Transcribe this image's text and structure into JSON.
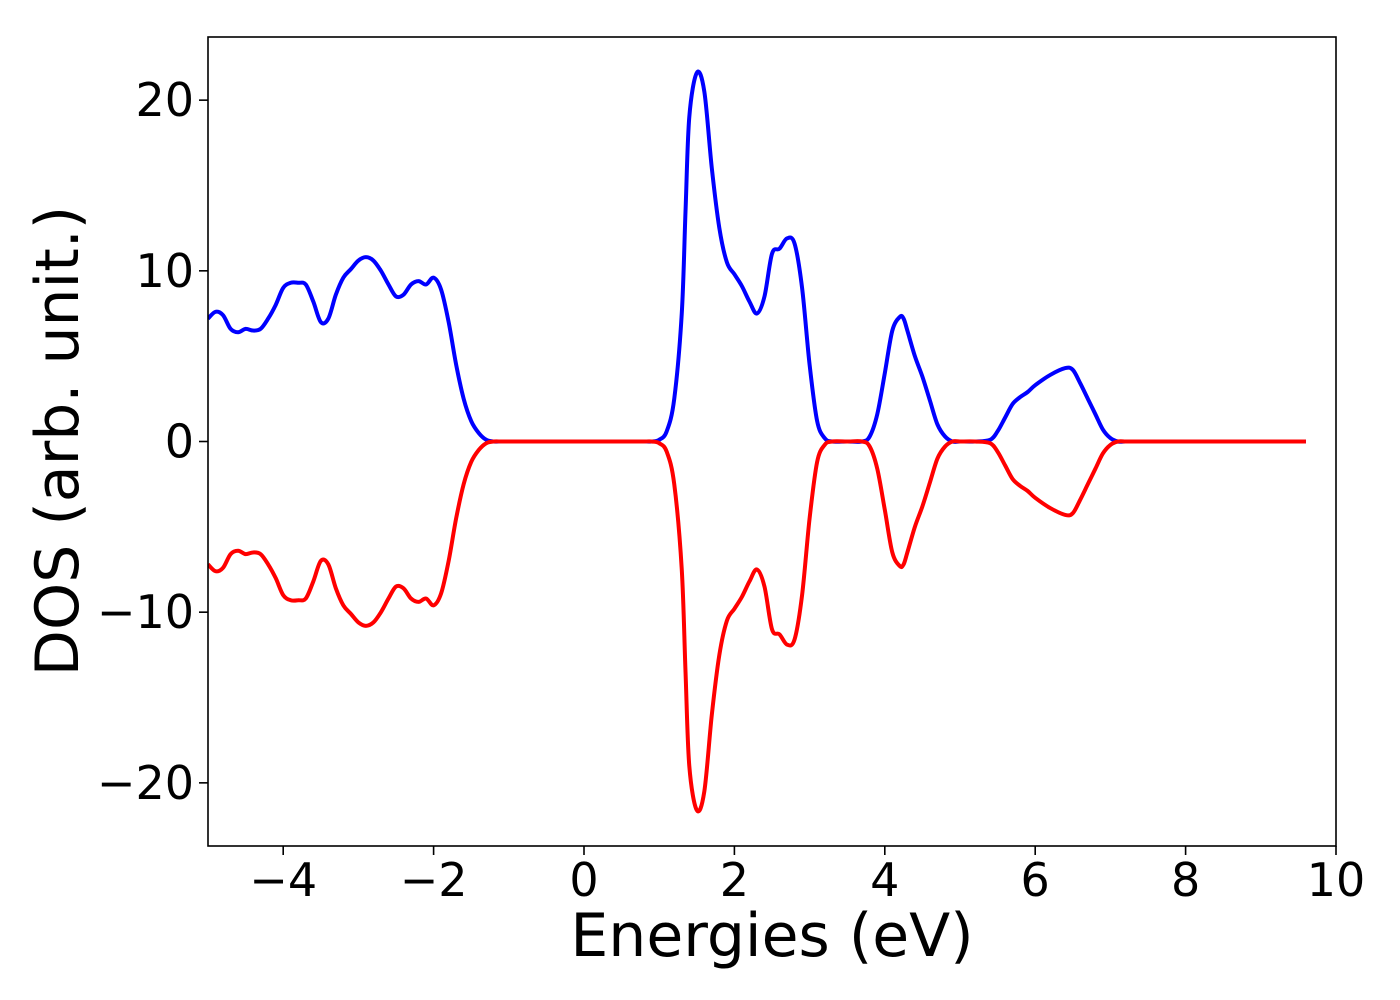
{
  "chart_data": {
    "type": "line",
    "title": "",
    "xlabel": "Energies (eV)",
    "ylabel": "DOS (arb. unit.)",
    "xlim": [
      -5,
      10
    ],
    "ylim": [
      -23.7,
      23.7
    ],
    "xticks": [
      -4,
      -2,
      0,
      2,
      4,
      6,
      8,
      10
    ],
    "xtick_labels": [
      "−4",
      "−2",
      "0",
      "2",
      "4",
      "6",
      "8",
      "10"
    ],
    "yticks": [
      20,
      10,
      0,
      -10,
      -20
    ],
    "ytick_labels": [
      "20",
      "10",
      "0",
      "−10",
      "−20"
    ],
    "grid": false,
    "legend": "none",
    "series": [
      {
        "color": "#0000ff",
        "x": [
          -5.0,
          -4.9,
          -4.8,
          -4.7,
          -4.6,
          -4.5,
          -4.4,
          -4.3,
          -4.2,
          -4.1,
          -4.0,
          -3.9,
          -3.8,
          -3.7,
          -3.6,
          -3.5,
          -3.4,
          -3.3,
          -3.2,
          -3.1,
          -3.0,
          -2.9,
          -2.8,
          -2.7,
          -2.6,
          -2.5,
          -2.4,
          -2.3,
          -2.2,
          -2.1,
          -2.0,
          -1.9,
          -1.8,
          -1.7,
          -1.6,
          -1.5,
          -1.4,
          -1.3,
          -1.2,
          -1.1,
          -1.0,
          -0.9,
          -0.8,
          -0.7,
          -0.6,
          -0.5,
          0.0,
          0.5,
          0.7,
          0.8,
          0.9,
          1.0,
          1.1,
          1.2,
          1.3,
          1.35,
          1.4,
          1.5,
          1.6,
          1.7,
          1.8,
          1.9,
          2.0,
          2.1,
          2.2,
          2.3,
          2.4,
          2.5,
          2.6,
          2.7,
          2.8,
          2.9,
          3.0,
          3.1,
          3.2,
          3.3,
          3.5,
          3.7,
          3.8,
          3.9,
          4.0,
          4.1,
          4.2,
          4.25,
          4.3,
          4.4,
          4.5,
          4.6,
          4.7,
          4.8,
          4.9,
          5.0,
          5.2,
          5.4,
          5.5,
          5.6,
          5.7,
          5.8,
          5.9,
          6.0,
          6.2,
          6.4,
          6.5,
          6.6,
          6.7,
          6.8,
          6.9,
          7.0,
          7.1,
          7.2,
          7.3,
          7.5,
          8.0,
          9.0,
          9.6
        ],
        "y": [
          7.2,
          7.6,
          7.4,
          6.6,
          6.4,
          6.6,
          6.5,
          6.6,
          7.2,
          8.0,
          9.0,
          9.3,
          9.3,
          9.2,
          8.2,
          7.0,
          7.2,
          8.6,
          9.6,
          10.1,
          10.6,
          10.8,
          10.6,
          10.0,
          9.2,
          8.5,
          8.6,
          9.2,
          9.4,
          9.2,
          9.6,
          8.9,
          7.0,
          4.5,
          2.5,
          1.2,
          0.5,
          0.1,
          0.0,
          0.0,
          0.0,
          0.0,
          0.0,
          0.0,
          0.0,
          0.0,
          0.0,
          0.0,
          0.0,
          0.0,
          0.0,
          0.1,
          0.6,
          2.5,
          7.5,
          13.5,
          19.0,
          21.6,
          20.5,
          16.0,
          12.5,
          10.5,
          9.8,
          9.1,
          8.2,
          7.5,
          8.5,
          11.0,
          11.3,
          11.9,
          11.6,
          9.0,
          4.5,
          1.2,
          0.2,
          0.0,
          0.0,
          0.0,
          0.3,
          1.6,
          4.0,
          6.5,
          7.3,
          7.2,
          6.5,
          5.0,
          3.8,
          2.4,
          1.0,
          0.3,
          0.0,
          0.0,
          0.0,
          0.1,
          0.6,
          1.4,
          2.2,
          2.6,
          2.9,
          3.3,
          3.9,
          4.3,
          4.2,
          3.4,
          2.5,
          1.6,
          0.7,
          0.2,
          0.0,
          0.0,
          0.0,
          0.0,
          0.0,
          0.0,
          0.0
        ]
      },
      {
        "color": "#ff0000",
        "x": [
          -5.0,
          -4.9,
          -4.8,
          -4.7,
          -4.6,
          -4.5,
          -4.4,
          -4.3,
          -4.2,
          -4.1,
          -4.0,
          -3.9,
          -3.8,
          -3.7,
          -3.6,
          -3.5,
          -3.4,
          -3.3,
          -3.2,
          -3.1,
          -3.0,
          -2.9,
          -2.8,
          -2.7,
          -2.6,
          -2.5,
          -2.4,
          -2.3,
          -2.2,
          -2.1,
          -2.0,
          -1.9,
          -1.8,
          -1.7,
          -1.6,
          -1.5,
          -1.4,
          -1.3,
          -1.2,
          -1.1,
          -1.0,
          -0.9,
          -0.8,
          -0.7,
          -0.6,
          -0.5,
          0.0,
          0.5,
          0.7,
          0.8,
          0.9,
          1.0,
          1.1,
          1.2,
          1.3,
          1.35,
          1.4,
          1.5,
          1.6,
          1.7,
          1.8,
          1.9,
          2.0,
          2.1,
          2.2,
          2.3,
          2.4,
          2.5,
          2.6,
          2.7,
          2.8,
          2.9,
          3.0,
          3.1,
          3.2,
          3.3,
          3.5,
          3.7,
          3.8,
          3.9,
          4.0,
          4.1,
          4.2,
          4.25,
          4.3,
          4.4,
          4.5,
          4.6,
          4.7,
          4.8,
          4.9,
          5.0,
          5.2,
          5.4,
          5.5,
          5.6,
          5.7,
          5.8,
          5.9,
          6.0,
          6.2,
          6.4,
          6.5,
          6.6,
          6.7,
          6.8,
          6.9,
          7.0,
          7.1,
          7.2,
          7.3,
          7.5,
          8.0,
          9.0,
          9.6
        ],
        "y": [
          -7.2,
          -7.6,
          -7.4,
          -6.6,
          -6.4,
          -6.6,
          -6.5,
          -6.6,
          -7.2,
          -8.0,
          -9.0,
          -9.3,
          -9.3,
          -9.2,
          -8.2,
          -7.0,
          -7.2,
          -8.6,
          -9.6,
          -10.1,
          -10.6,
          -10.8,
          -10.6,
          -10.0,
          -9.2,
          -8.5,
          -8.6,
          -9.2,
          -9.4,
          -9.2,
          -9.6,
          -8.9,
          -7.0,
          -4.5,
          -2.5,
          -1.2,
          -0.5,
          -0.1,
          0.0,
          0.0,
          0.0,
          0.0,
          0.0,
          0.0,
          0.0,
          0.0,
          0.0,
          0.0,
          0.0,
          0.0,
          0.0,
          -0.1,
          -0.6,
          -2.5,
          -7.5,
          -13.5,
          -19.0,
          -21.6,
          -20.5,
          -16.0,
          -12.5,
          -10.5,
          -9.8,
          -9.1,
          -8.2,
          -7.5,
          -8.5,
          -11.0,
          -11.3,
          -11.9,
          -11.6,
          -9.0,
          -4.5,
          -1.2,
          -0.2,
          0.0,
          0.0,
          0.0,
          -0.3,
          -1.6,
          -4.0,
          -6.5,
          -7.3,
          -7.2,
          -6.5,
          -5.0,
          -3.8,
          -2.4,
          -1.0,
          -0.3,
          0.0,
          0.0,
          0.0,
          -0.1,
          -0.6,
          -1.4,
          -2.2,
          -2.6,
          -2.9,
          -3.3,
          -3.9,
          -4.3,
          -4.2,
          -3.4,
          -2.5,
          -1.6,
          -0.7,
          -0.2,
          0.0,
          0.0,
          0.0,
          0.0,
          0.0,
          0.0,
          0.0
        ]
      }
    ]
  }
}
